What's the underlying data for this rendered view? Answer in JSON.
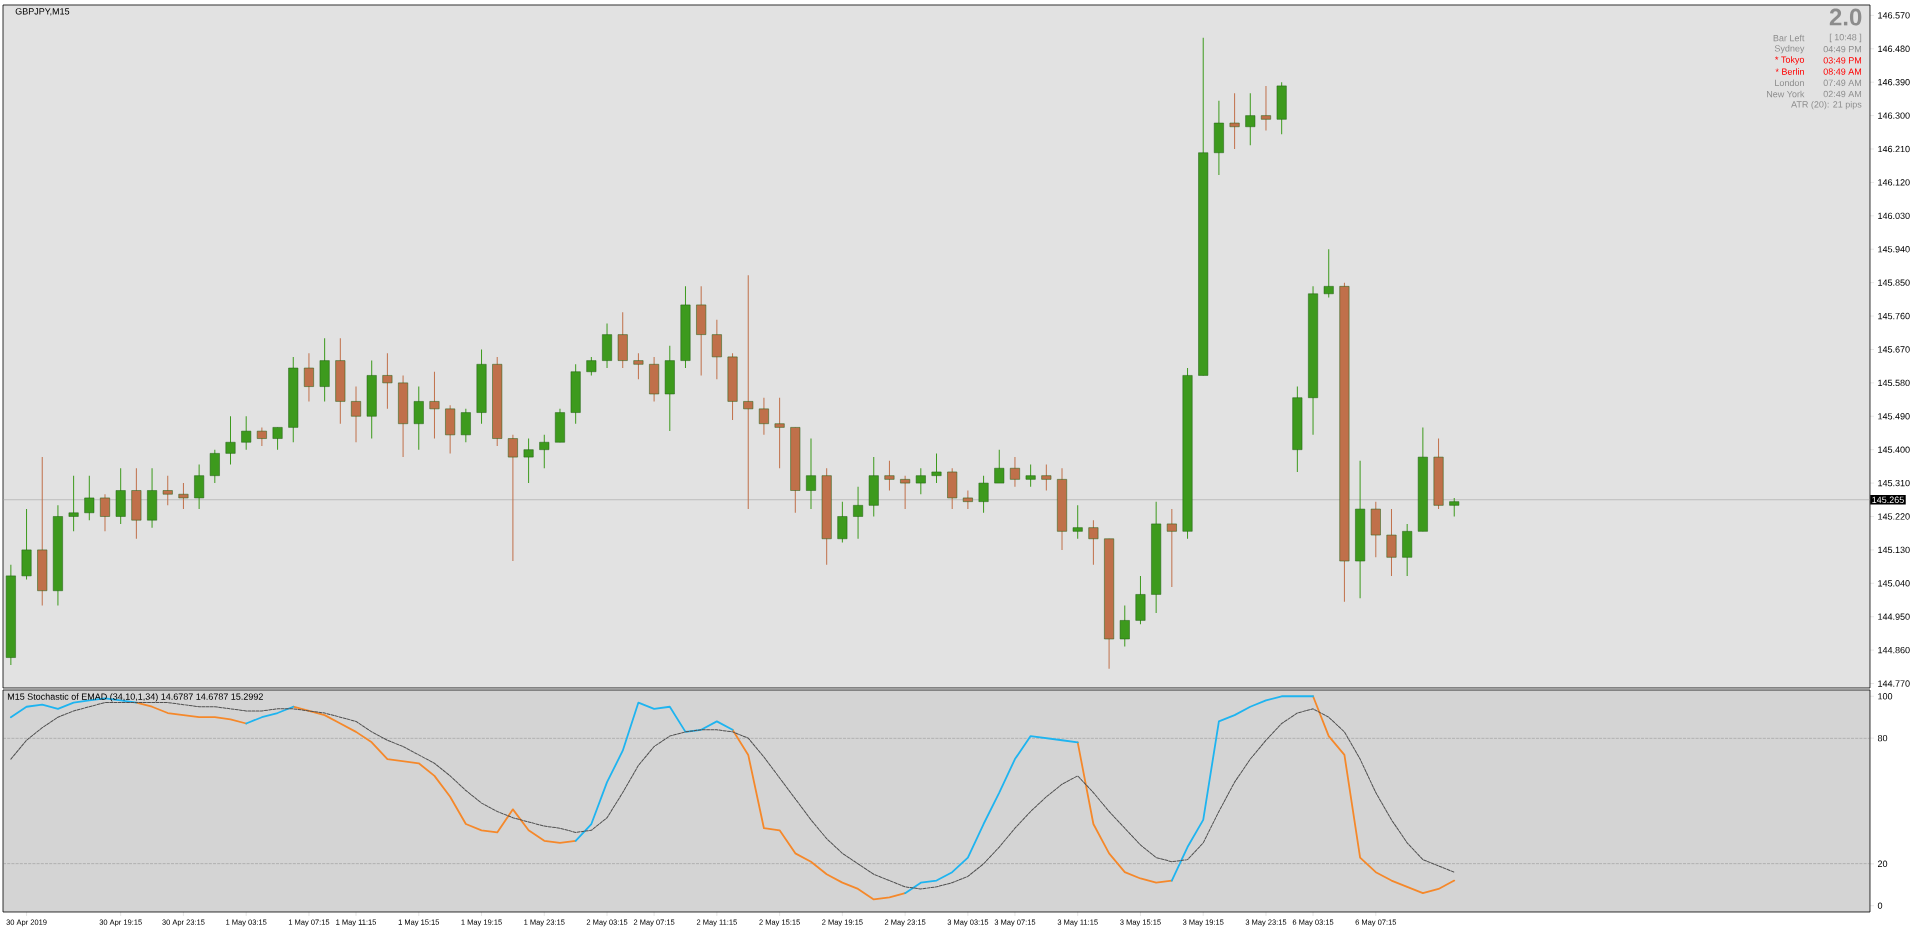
{
  "chart_data": [
    {
      "type": "candlestick",
      "title": "GBPJPY,M15",
      "tick_labels": "y",
      "categories": [
        null,
        null,
        null,
        null,
        null,
        null,
        null,
        null,
        null,
        null,
        null,
        null,
        null,
        null,
        null,
        null,
        null,
        null,
        null,
        null,
        null,
        null,
        null,
        null,
        null,
        null,
        null,
        null,
        null,
        null,
        null,
        null,
        null,
        null,
        null,
        null,
        null,
        null,
        null,
        null,
        null,
        null,
        null,
        null,
        null,
        null,
        null,
        null,
        null,
        null,
        null,
        null,
        null,
        null,
        null,
        null,
        null,
        null,
        null,
        null,
        null,
        null,
        null,
        null,
        null,
        null,
        null,
        null,
        null,
        null,
        null,
        null,
        null,
        null,
        null,
        null,
        null,
        null,
        null,
        null,
        null,
        null,
        null,
        null,
        null,
        null,
        null,
        null,
        null,
        null,
        null,
        null,
        null,
        null,
        null,
        null,
        null,
        null,
        null,
        null,
        null,
        null,
        null,
        null,
        null,
        null,
        null,
        null,
        null,
        null,
        null,
        null,
        null,
        null,
        null,
        null,
        null,
        null,
        null
      ],
      "ohlc": [
        [
          144.84,
          145.09,
          144.82,
          145.06
        ],
        [
          145.06,
          145.24,
          145.05,
          145.13
        ],
        [
          145.13,
          145.38,
          144.98,
          145.02
        ],
        [
          145.02,
          145.25,
          144.98,
          145.22
        ],
        [
          145.22,
          145.33,
          145.18,
          145.23
        ],
        [
          145.23,
          145.33,
          145.21,
          145.27
        ],
        [
          145.27,
          145.28,
          145.18,
          145.22
        ],
        [
          145.22,
          145.35,
          145.2,
          145.29
        ],
        [
          145.29,
          145.35,
          145.16,
          145.21
        ],
        [
          145.21,
          145.35,
          145.19,
          145.29
        ],
        [
          145.29,
          145.33,
          145.25,
          145.28
        ],
        [
          145.28,
          145.31,
          145.24,
          145.27
        ],
        [
          145.27,
          145.36,
          145.24,
          145.33
        ],
        [
          145.33,
          145.4,
          145.31,
          145.39
        ],
        [
          145.39,
          145.49,
          145.36,
          145.42
        ],
        [
          145.42,
          145.49,
          145.4,
          145.45
        ],
        [
          145.45,
          145.46,
          145.41,
          145.43
        ],
        [
          145.43,
          145.46,
          145.4,
          145.46
        ],
        [
          145.46,
          145.65,
          145.42,
          145.62
        ],
        [
          145.62,
          145.66,
          145.53,
          145.57
        ],
        [
          145.57,
          145.7,
          145.53,
          145.64
        ],
        [
          145.64,
          145.7,
          145.47,
          145.53
        ],
        [
          145.53,
          145.57,
          145.42,
          145.49
        ],
        [
          145.49,
          145.64,
          145.43,
          145.6
        ],
        [
          145.6,
          145.66,
          145.51,
          145.58
        ],
        [
          145.58,
          145.6,
          145.38,
          145.47
        ],
        [
          145.47,
          145.57,
          145.4,
          145.53
        ],
        [
          145.53,
          145.61,
          145.43,
          145.51
        ],
        [
          145.51,
          145.52,
          145.39,
          145.44
        ],
        [
          145.44,
          145.51,
          145.42,
          145.5
        ],
        [
          145.5,
          145.67,
          145.47,
          145.63
        ],
        [
          145.63,
          145.65,
          145.41,
          145.43
        ],
        [
          145.43,
          145.44,
          145.1,
          145.38
        ],
        [
          145.38,
          145.43,
          145.31,
          145.4
        ],
        [
          145.4,
          145.44,
          145.35,
          145.42
        ],
        [
          145.42,
          145.51,
          145.42,
          145.5
        ],
        [
          145.5,
          145.63,
          145.47,
          145.61
        ],
        [
          145.61,
          145.65,
          145.6,
          145.64
        ],
        [
          145.64,
          145.74,
          145.62,
          145.71
        ],
        [
          145.71,
          145.77,
          145.62,
          145.64
        ],
        [
          145.64,
          145.66,
          145.59,
          145.63
        ],
        [
          145.63,
          145.65,
          145.53,
          145.55
        ],
        [
          145.55,
          145.68,
          145.45,
          145.64
        ],
        [
          145.64,
          145.84,
          145.62,
          145.79
        ],
        [
          145.79,
          145.84,
          145.6,
          145.71
        ],
        [
          145.71,
          145.75,
          145.59,
          145.65
        ],
        [
          145.65,
          145.66,
          145.48,
          145.53
        ],
        [
          145.53,
          145.87,
          145.24,
          145.51
        ],
        [
          145.51,
          145.54,
          145.44,
          145.47
        ],
        [
          145.47,
          145.54,
          145.35,
          145.46
        ],
        [
          145.46,
          145.46,
          145.23,
          145.29
        ],
        [
          145.29,
          145.43,
          145.24,
          145.33
        ],
        [
          145.33,
          145.35,
          145.09,
          145.16
        ],
        [
          145.16,
          145.26,
          145.15,
          145.22
        ],
        [
          145.22,
          145.3,
          145.16,
          145.25
        ],
        [
          145.25,
          145.38,
          145.22,
          145.33
        ],
        [
          145.33,
          145.37,
          145.29,
          145.32
        ],
        [
          145.32,
          145.33,
          145.24,
          145.31
        ],
        [
          145.31,
          145.35,
          145.28,
          145.33
        ],
        [
          145.33,
          145.39,
          145.31,
          145.34
        ],
        [
          145.34,
          145.35,
          145.24,
          145.27
        ],
        [
          145.27,
          145.29,
          145.24,
          145.26
        ],
        [
          145.26,
          145.33,
          145.23,
          145.31
        ],
        [
          145.31,
          145.4,
          145.31,
          145.35
        ],
        [
          145.35,
          145.38,
          145.3,
          145.32
        ],
        [
          145.32,
          145.36,
          145.3,
          145.33
        ],
        [
          145.33,
          145.36,
          145.29,
          145.32
        ],
        [
          145.32,
          145.35,
          145.13,
          145.18
        ],
        [
          145.18,
          145.25,
          145.16,
          145.19
        ],
        [
          145.19,
          145.21,
          145.09,
          145.16
        ],
        [
          145.16,
          145.16,
          144.81,
          144.89
        ],
        [
          144.89,
          144.98,
          144.87,
          144.94
        ],
        [
          144.94,
          145.06,
          144.93,
          145.01
        ],
        [
          145.01,
          145.26,
          144.96,
          145.2
        ],
        [
          145.2,
          145.24,
          145.03,
          145.18
        ],
        [
          145.18,
          145.62,
          145.16,
          145.6
        ],
        [
          145.6,
          146.51,
          145.6,
          146.2
        ],
        [
          146.2,
          146.34,
          146.14,
          146.28
        ],
        [
          146.28,
          146.36,
          146.21,
          146.27
        ],
        [
          146.27,
          146.36,
          146.22,
          146.3
        ],
        [
          146.3,
          146.38,
          146.26,
          146.29
        ],
        [
          146.29,
          146.39,
          146.25,
          146.38
        ],
        [
          145.4,
          145.57,
          145.34,
          145.54
        ],
        [
          145.54,
          145.84,
          145.44,
          145.82
        ],
        [
          145.82,
          145.94,
          145.81,
          145.84
        ],
        [
          145.84,
          145.85,
          144.99,
          145.1
        ],
        [
          145.1,
          145.37,
          145.0,
          145.24
        ],
        [
          145.24,
          145.26,
          145.11,
          145.17
        ],
        [
          145.17,
          145.24,
          145.06,
          145.11
        ],
        [
          145.11,
          145.2,
          145.06,
          145.18
        ],
        [
          145.18,
          145.46,
          145.18,
          145.38
        ],
        [
          145.38,
          145.43,
          145.24,
          145.25
        ],
        [
          145.25,
          145.27,
          145.22,
          145.26
        ],
        null,
        null,
        null,
        null,
        null,
        null,
        null,
        null,
        null,
        null,
        null,
        null,
        null,
        null,
        null,
        null,
        null,
        null,
        null,
        null,
        null,
        null,
        null,
        null,
        null,
        null
      ],
      "colors": [
        "#3d9a1d",
        "#3d9a1d",
        "#c0704a",
        "#3d9a1d",
        "#3d9a1d",
        "#3d9a1d",
        "#c0704a",
        "#3d9a1d",
        "#c0704a",
        "#3d9a1d",
        "#c0704a",
        "#c0704a",
        "#3d9a1d",
        "#3d9a1d",
        "#3d9a1d",
        "#3d9a1d",
        "#c0704a",
        "#3d9a1d",
        "#3d9a1d",
        "#c0704a",
        "#3d9a1d",
        "#c0704a",
        "#c0704a",
        "#3d9a1d",
        "#c0704a",
        "#c0704a",
        "#3d9a1d",
        "#c0704a",
        "#c0704a",
        "#3d9a1d",
        "#3d9a1d",
        "#c0704a",
        "#c0704a",
        "#3d9a1d",
        "#3d9a1d",
        "#3d9a1d",
        "#3d9a1d",
        "#3d9a1d",
        "#3d9a1d",
        "#c0704a",
        "#c0704a",
        "#c0704a",
        "#3d9a1d",
        "#3d9a1d",
        "#c0704a",
        "#c0704a",
        "#c0704a",
        "#c0704a",
        "#c0704a",
        "#c0704a",
        "#c0704a",
        "#3d9a1d",
        "#c0704a",
        "#3d9a1d",
        "#3d9a1d",
        "#3d9a1d",
        "#c0704a",
        "#c0704a",
        "#3d9a1d",
        "#3d9a1d",
        "#c0704a",
        "#c0704a",
        "#3d9a1d",
        "#3d9a1d",
        "#c0704a",
        "#3d9a1d",
        "#c0704a",
        "#c0704a",
        "#3d9a1d",
        "#c0704a",
        "#c0704a",
        "#3d9a1d",
        "#3d9a1d",
        "#3d9a1d",
        "#c0704a",
        "#3d9a1d",
        "#3d9a1d",
        "#3d9a1d",
        "#c0704a",
        "#3d9a1d",
        "#c0704a",
        "#3d9a1d",
        "#3d9a1d",
        "#3d9a1d",
        "#3d9a1d",
        "#c0704a",
        "#3d9a1d",
        "#c0704a",
        "#c0704a",
        "#3d9a1d",
        "#3d9a1d",
        "#c0704a",
        "#3d9a1d",
        null,
        null,
        null,
        null,
        null,
        null,
        null,
        null,
        null,
        null,
        null,
        null,
        null,
        null,
        null,
        null,
        null,
        null,
        null,
        null,
        null,
        null,
        null,
        null,
        null,
        null
      ],
      "ylim": [
        144.758,
        146.598
      ],
      "yticks": [
        {
          "value": 144.77,
          "label": "144.770"
        },
        {
          "value": 144.86,
          "label": "144.860"
        },
        {
          "value": 144.95,
          "label": "144.950"
        },
        {
          "value": 145.04,
          "label": "145.040"
        },
        {
          "value": 145.13,
          "label": "145.130"
        },
        {
          "value": 145.22,
          "label": "145.220"
        },
        {
          "value": 145.31,
          "label": "145.310"
        },
        {
          "value": 145.4,
          "label": "145.400"
        },
        {
          "value": 145.49,
          "label": "145.490"
        },
        {
          "value": 145.58,
          "label": "145.580"
        },
        {
          "value": 145.67,
          "label": "145.670"
        },
        {
          "value": 145.76,
          "label": "145.760"
        },
        {
          "value": 145.85,
          "label": "145.850"
        },
        {
          "value": 145.94,
          "label": "145.940"
        },
        {
          "value": 146.03,
          "label": "146.030"
        },
        {
          "value": 146.12,
          "label": "146.120"
        },
        {
          "value": 146.21,
          "label": "146.210"
        },
        {
          "value": 146.3,
          "label": "146.300"
        },
        {
          "value": 146.39,
          "label": "146.390"
        },
        {
          "value": 146.48,
          "label": "146.480"
        },
        {
          "value": 146.57,
          "label": "146.570"
        }
      ],
      "ref_lines": [
        {
          "axis": "y",
          "value": 145.265,
          "label": "145.265",
          "color": "#a0a0a0"
        }
      ],
      "annotations": [
        "2.0",
        "Bar Left",
        "[ 10:48 ]",
        "Sydney",
        "04:49 PM",
        "* Tokyo",
        "03:49 PM",
        "* Berlin",
        "08:49 AM",
        "London",
        "07:49 AM",
        "New York",
        "02:49 AM",
        "ATR (20): 21 pips"
      ]
    },
    {
      "type": "line",
      "title": "M15 Stochastic of EMAD (34,10,1,34) 14.6787 14.6787 15.2992",
      "categories": [
        null,
        "30 Apr 2019",
        null,
        null,
        null,
        null,
        null,
        "30 Apr 19:15",
        null,
        null,
        null,
        "30 Apr 23:15",
        null,
        null,
        null,
        "1 May 03:15",
        null,
        null,
        null,
        "1 May 07:15",
        null,
        null,
        "1 May 11:15",
        null,
        null,
        null,
        "1 May 15:15",
        null,
        null,
        null,
        "1 May 19:15",
        null,
        null,
        null,
        "1 May 23:15",
        null,
        null,
        null,
        "2 May 03:15",
        null,
        null,
        "2 May 07:15",
        null,
        null,
        null,
        "2 May 11:15",
        null,
        null,
        null,
        "2 May 15:15",
        null,
        null,
        null,
        "2 May 19:15",
        null,
        null,
        null,
        "2 May 23:15",
        null,
        null,
        null,
        "3 May 03:15",
        null,
        null,
        "3 May 07:15",
        null,
        null,
        null,
        "3 May 11:15",
        null,
        null,
        null,
        "3 May 15:15",
        null,
        null,
        null,
        "3 May 19:15",
        null,
        null,
        null,
        "3 May 23:15",
        null,
        null,
        "6 May 03:15",
        null,
        null,
        null,
        "6 May 07:15",
        null,
        null,
        null,
        null,
        null,
        null,
        null,
        null,
        null,
        null,
        null,
        null,
        null,
        null,
        null,
        null,
        null,
        null,
        null,
        null,
        null,
        null,
        null,
        null,
        null,
        null,
        null,
        null,
        null,
        null,
        null
      ],
      "series": [
        {
          "color": "#505050",
          "line_style": "dashed",
          "values": [
            70,
            79,
            85,
            90,
            93,
            95,
            97,
            97,
            97,
            97,
            97,
            96,
            95,
            95,
            94,
            93,
            93,
            94,
            94,
            93,
            92,
            90,
            88,
            83,
            79,
            76,
            72,
            68,
            62,
            55,
            49,
            45,
            42,
            40,
            38,
            37,
            35,
            36,
            42,
            54,
            67,
            76,
            81,
            83,
            84,
            84,
            83,
            80,
            71,
            61,
            51,
            41,
            32,
            25,
            20,
            15,
            12,
            9,
            8,
            9,
            11,
            14,
            20,
            28,
            37,
            45,
            52,
            58,
            62,
            54,
            45,
            37,
            29,
            23,
            21,
            22,
            30,
            45,
            59,
            70,
            79,
            87,
            92,
            94,
            90,
            83,
            70,
            54,
            41,
            30,
            22,
            19,
            16,
            null,
            null,
            null,
            null,
            null,
            null,
            null,
            null,
            null,
            null,
            null,
            null,
            null,
            null,
            null,
            null,
            null,
            null,
            null,
            null,
            null,
            null,
            null,
            null,
            null,
            null
          ]
        },
        {
          "color": "#f5882a",
          "values": [
            null,
            null,
            null,
            null,
            null,
            null,
            null,
            null,
            97,
            95,
            92,
            91,
            90,
            90,
            89,
            87,
            null,
            null,
            95,
            93,
            91,
            87,
            83,
            78,
            70,
            69,
            68,
            62,
            52,
            39,
            36,
            35,
            46,
            36,
            31,
            30,
            31,
            null,
            null,
            null,
            null,
            null,
            null,
            null,
            null,
            null,
            84,
            72,
            37,
            36,
            25,
            21,
            15,
            11,
            8,
            3,
            4,
            6,
            null,
            null,
            null,
            null,
            null,
            null,
            null,
            null,
            null,
            null,
            78,
            39,
            25,
            16,
            13,
            11,
            12,
            null,
            null,
            null,
            null,
            null,
            null,
            null,
            null,
            100,
            81,
            72,
            23,
            16,
            12,
            9,
            6,
            8,
            12,
            null,
            null,
            null,
            null,
            null,
            null,
            null,
            null,
            null,
            null,
            null,
            null,
            null,
            null,
            null,
            null,
            null,
            null,
            null,
            null,
            null,
            null,
            null,
            null,
            null,
            null
          ]
        },
        {
          "color": "#1eb4f0",
          "values": [
            90,
            95,
            96,
            94,
            97,
            98,
            99,
            98,
            97,
            null,
            null,
            null,
            null,
            null,
            null,
            87,
            90,
            92,
            95,
            null,
            null,
            null,
            null,
            null,
            null,
            null,
            null,
            null,
            null,
            null,
            null,
            null,
            null,
            null,
            null,
            null,
            31,
            39,
            59,
            74,
            97,
            94,
            95,
            83,
            84,
            88,
            84,
            null,
            null,
            null,
            null,
            null,
            null,
            null,
            null,
            null,
            null,
            6,
            11,
            12,
            16,
            23,
            39,
            54,
            70,
            81,
            80,
            79,
            78,
            null,
            null,
            null,
            null,
            null,
            12,
            28,
            41,
            88,
            91,
            95,
            98,
            100,
            100,
            100,
            null,
            null,
            null,
            null,
            null,
            null,
            null,
            null,
            null,
            null,
            null,
            null,
            null,
            null,
            null,
            null,
            null,
            null,
            null,
            null,
            null,
            null,
            null,
            null,
            null,
            null,
            null,
            null,
            null,
            null,
            null,
            null,
            null,
            null,
            null
          ]
        }
      ],
      "ylim": [
        -3,
        103
      ],
      "yticks": [
        0,
        20,
        80,
        100
      ],
      "ref_lines": [
        {
          "axis": "y",
          "value": 80,
          "color": "#707070",
          "line_style": "dashed"
        },
        {
          "axis": "y",
          "value": 20,
          "color": "#707070",
          "line_style": "dashed"
        }
      ]
    }
  ]
}
